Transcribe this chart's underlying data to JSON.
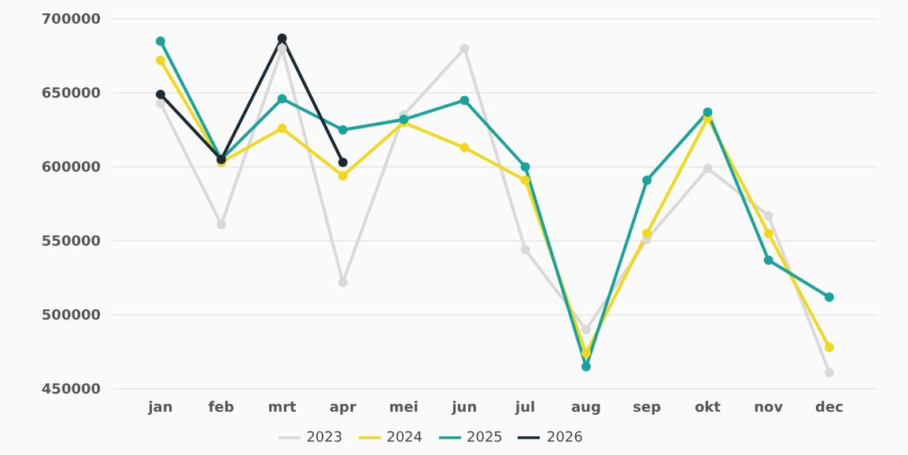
{
  "chart_data": {
    "type": "line",
    "categories": [
      "jan",
      "feb",
      "mrt",
      "apr",
      "mei",
      "jun",
      "jul",
      "aug",
      "sep",
      "okt",
      "nov",
      "dec"
    ],
    "series": [
      {
        "name": "2023",
        "color": "#d9d9d9",
        "values": [
          643000,
          561000,
          680000,
          522000,
          635000,
          680000,
          544000,
          490000,
          551000,
          599000,
          567000,
          461000
        ]
      },
      {
        "name": "2024",
        "color": "#f2d81c",
        "values": [
          672000,
          603000,
          626000,
          594000,
          630000,
          613000,
          591000,
          474000,
          555000,
          633000,
          555000,
          478000
        ]
      },
      {
        "name": "2025",
        "color": "#1aa39a",
        "values": [
          685000,
          605000,
          646000,
          625000,
          632000,
          645000,
          600000,
          465000,
          591000,
          637000,
          537000,
          512000
        ]
      },
      {
        "name": "2026",
        "color": "#1b2a33",
        "values": [
          649000,
          605000,
          687000,
          603000,
          null,
          null,
          null,
          null,
          null,
          null,
          null,
          null
        ]
      }
    ],
    "ylim": [
      450000,
      700000
    ],
    "yticks": [
      450000,
      500000,
      550000,
      600000,
      650000,
      700000
    ],
    "grid": "y",
    "legend": "bottom",
    "marker": "circle",
    "line_style": "solid"
  }
}
